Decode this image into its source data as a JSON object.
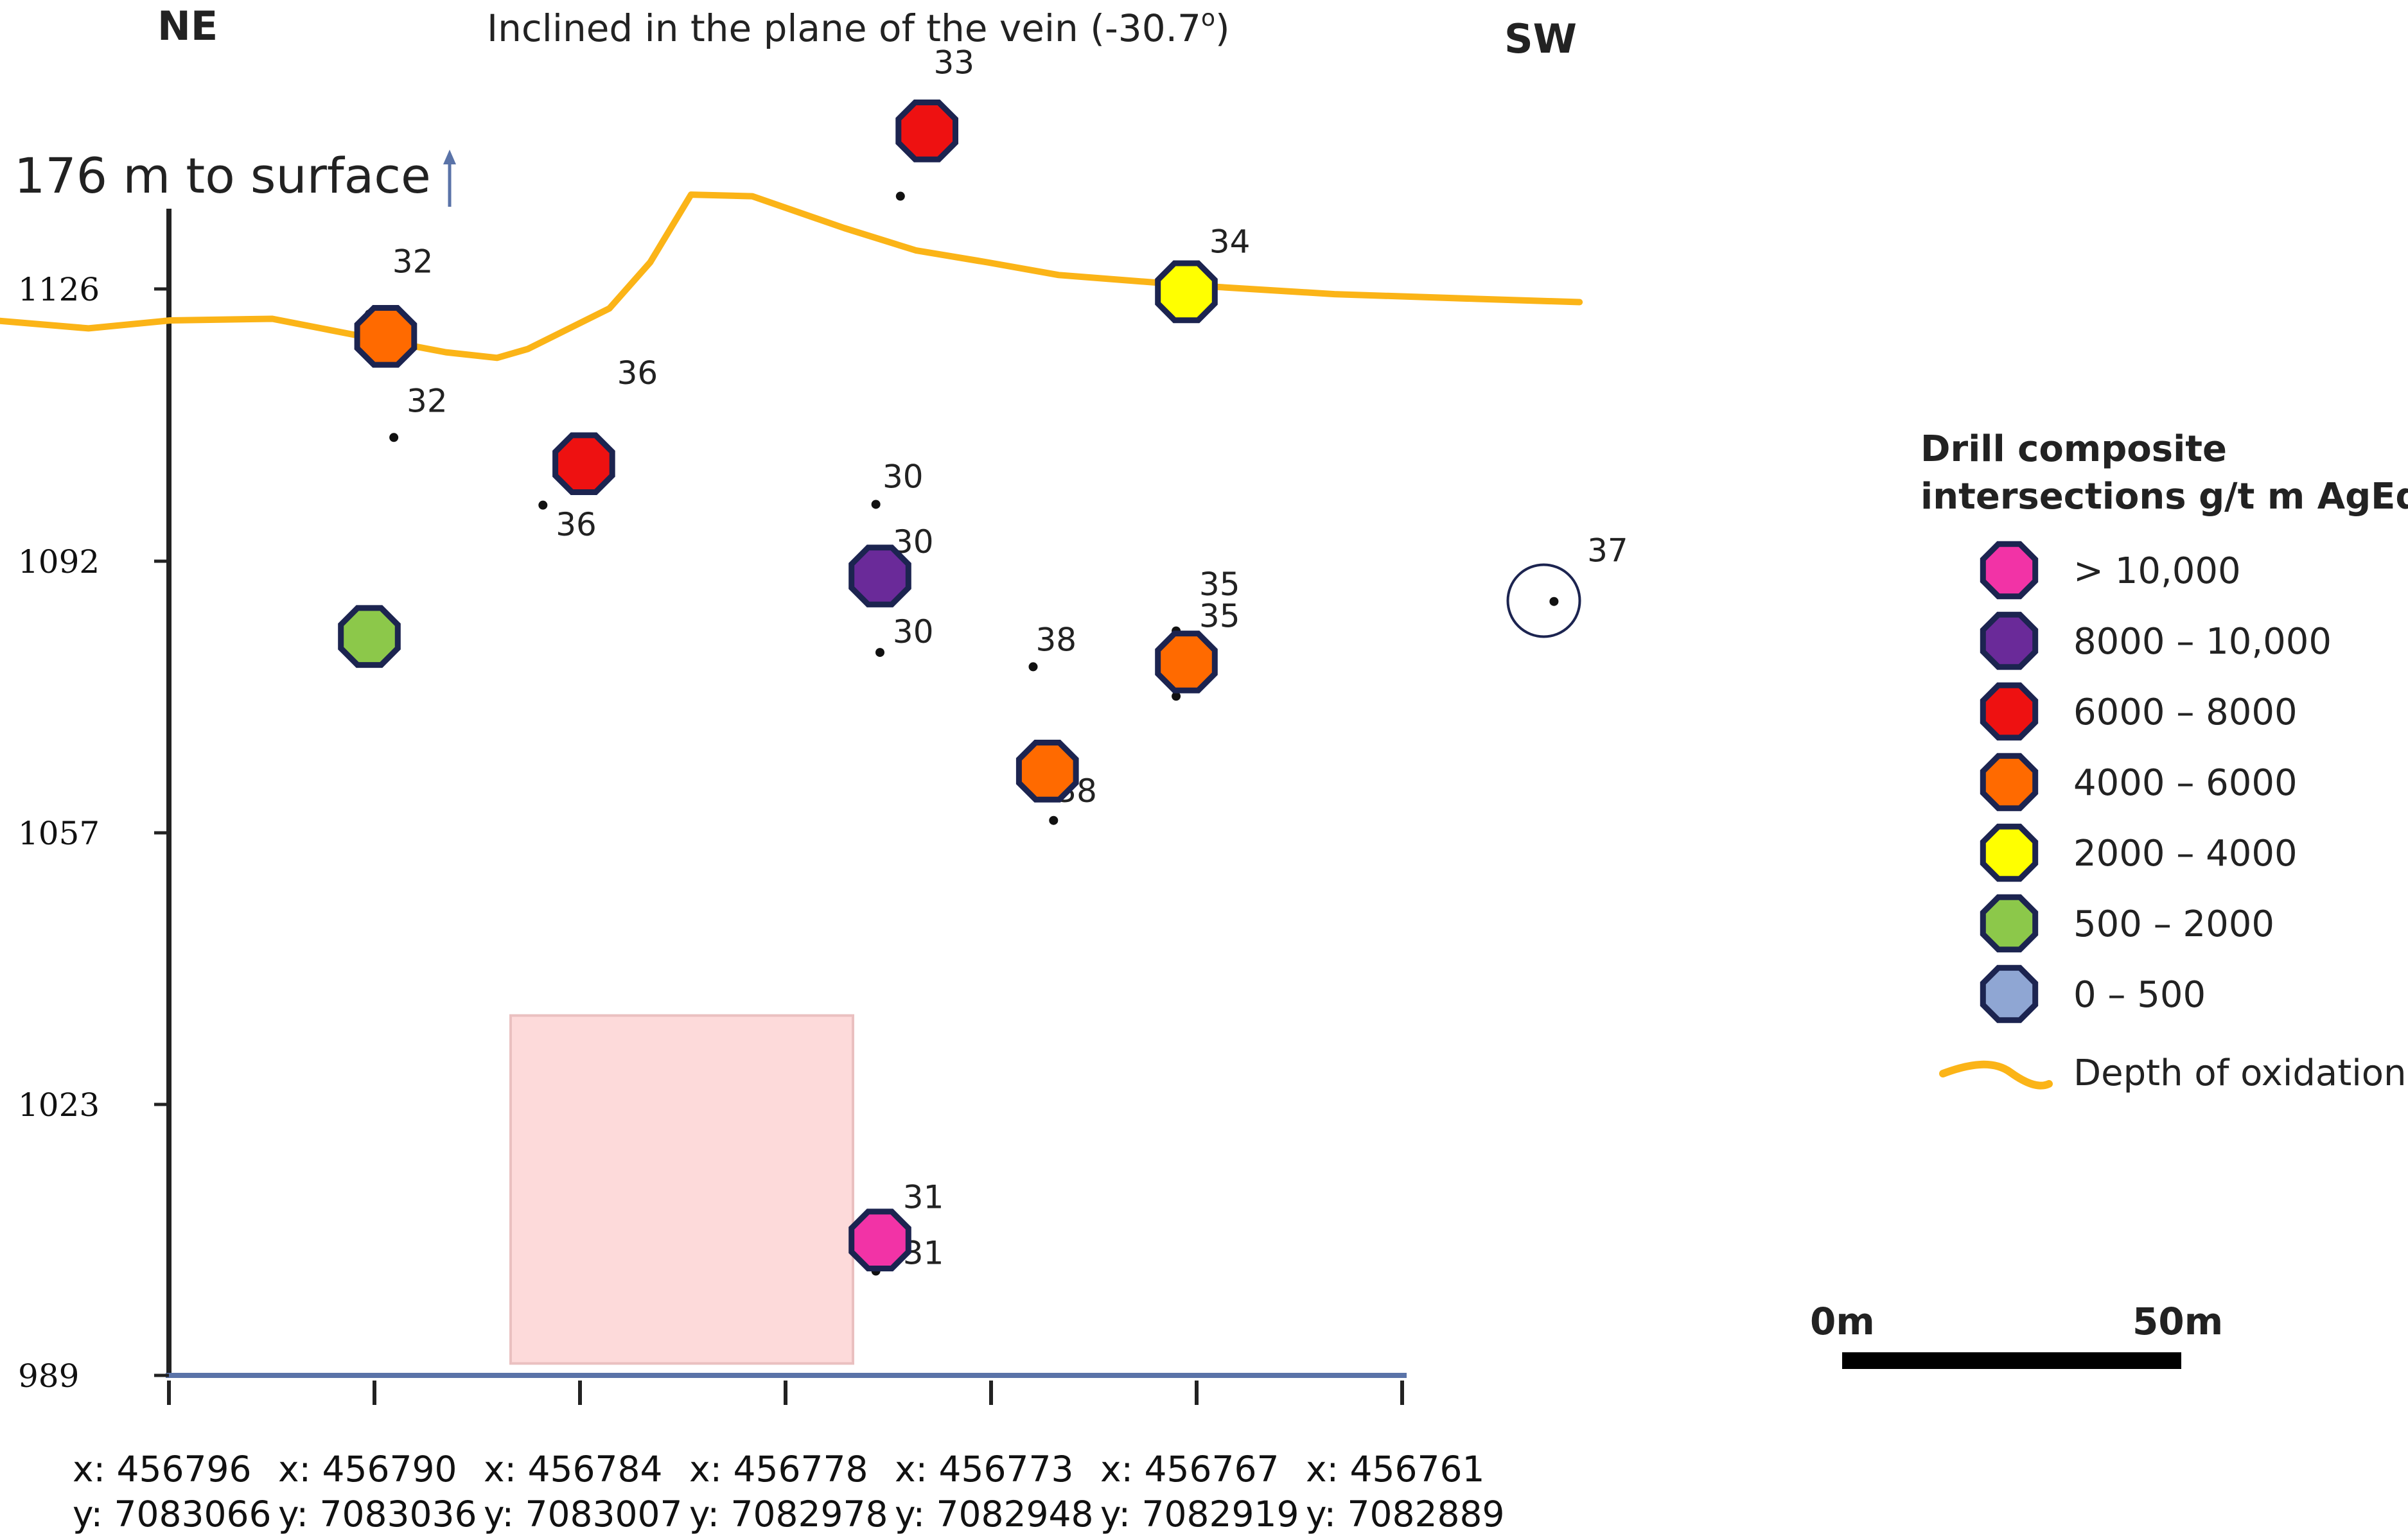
{
  "header": {
    "left_direction": "NE",
    "title": "Inclined in the plane of the vein (-30.7",
    "title_sup": "o",
    "title_close": ")",
    "right_direction": "SW"
  },
  "surface_note": "176 m to surface",
  "colors": {
    "gt_10000": "#f233a6",
    "r_8000_10000": "#6a2a99",
    "r_6000_8000": "#ee1111",
    "r_4000_6000": "#ff6a00",
    "r_2000_4000": "#ffff00",
    "r_500_2000": "#8cc84a",
    "r_0_500": "#8fa6d3",
    "oxidation": "#fbb417",
    "outline": "#1c2450",
    "highlight_box": "#fddada",
    "axis_bottom": "#5a73a8"
  },
  "chart_data": {
    "type": "scatter",
    "ylim": [
      989,
      1160
    ],
    "y_ticks": [
      "1126",
      "1092",
      "1057",
      "1023",
      "989"
    ],
    "x_ticks": [
      {
        "x": "x: 456796",
        "y": "y: 7083066"
      },
      {
        "x": "x: 456790",
        "y": "y: 7083036"
      },
      {
        "x": "x: 456784",
        "y": "y: 7083007"
      },
      {
        "x": "x: 456778",
        "y": "y: 7082978"
      },
      {
        "x": "x: 456773",
        "y": "y: 7082948"
      },
      {
        "x": "x: 456767",
        "y": "y: 7082919"
      },
      {
        "x": "x: 456761",
        "y": "y: 7082889"
      }
    ],
    "intersections": [
      {
        "hole": "32",
        "category": "r_4000_6000",
        "x": 0.08,
        "y": 1119.5
      },
      {
        "hole": "36",
        "category": "r_6000_8000",
        "x": 1.05,
        "y": 1103.5
      },
      {
        "hole": "33",
        "category": "r_6000_8000",
        "x": 2.73,
        "y": 1145.3
      },
      {
        "hole": "34",
        "category": "r_2000_4000",
        "x": 4.0,
        "y": 1125.1
      },
      {
        "hole": "30",
        "category": "r_8000_10000",
        "x": 2.5,
        "y": 1089.4
      },
      {
        "hole": "",
        "category": "r_500_2000",
        "x": 0.0,
        "y": 1081.8
      },
      {
        "hole": "38",
        "category": "r_4000_6000",
        "x": 3.32,
        "y": 1064.9
      },
      {
        "hole": "35",
        "category": "r_4000_6000",
        "x": 4.0,
        "y": 1078.6
      },
      {
        "hole": "31",
        "category": "r_gt_10000",
        "x": 2.5,
        "y": 1006.0
      }
    ],
    "hole_labels": [
      {
        "text": "32",
        "x": 0.1,
        "y": 1127.5
      },
      {
        "text": "32",
        "x": 0.17,
        "y": 1110.0
      },
      {
        "text": "36",
        "x": 1.2,
        "y": 1113.5
      },
      {
        "text": "36",
        "x": 0.9,
        "y": 1094.5
      },
      {
        "text": "33",
        "x": 2.75,
        "y": 1152.5
      },
      {
        "text": "34",
        "x": 4.1,
        "y": 1130.0
      },
      {
        "text": "30",
        "x": 2.5,
        "y": 1100.5
      },
      {
        "text": "30",
        "x": 2.55,
        "y": 1092.3
      },
      {
        "text": "30",
        "x": 2.55,
        "y": 1081.0
      },
      {
        "text": "38",
        "x": 3.25,
        "y": 1080.0
      },
      {
        "text": "38",
        "x": 3.35,
        "y": 1061.0
      },
      {
        "text": "35",
        "x": 4.05,
        "y": 1087.0
      },
      {
        "text": "35",
        "x": 4.05,
        "y": 1083.0
      },
      {
        "text": "37",
        "x": 5.95,
        "y": 1091.2
      },
      {
        "text": "31",
        "x": 2.6,
        "y": 1010.0
      },
      {
        "text": "31",
        "x": 2.6,
        "y": 1003.0
      }
    ],
    "hole_dots": [
      {
        "x": 0.0,
        "y": 1122.3
      },
      {
        "x": 0.12,
        "y": 1106.8
      },
      {
        "x": 0.85,
        "y": 1098.3
      },
      {
        "x": 2.48,
        "y": 1098.4
      },
      {
        "x": 2.5,
        "y": 1079.8
      },
      {
        "x": 3.25,
        "y": 1078.0
      },
      {
        "x": 3.35,
        "y": 1058.7
      },
      {
        "x": 3.95,
        "y": 1082.5
      },
      {
        "x": 3.95,
        "y": 1074.3
      },
      {
        "x": 5.8,
        "y": 1086.2
      },
      {
        "x": 2.48,
        "y": 1002.1
      },
      {
        "x": 2.6,
        "y": 1137.1
      }
    ],
    "open_circle_hole": {
      "x": 5.75,
      "y": 1086.3
    },
    "oxidation_line": [
      [
        -1.0,
        1121.8
      ],
      [
        -0.4,
        1120.5
      ],
      [
        0.0,
        1121.5
      ],
      [
        0.5,
        1121.7
      ],
      [
        1.0,
        1119.2
      ],
      [
        1.35,
        1117.5
      ],
      [
        1.6,
        1116.8
      ],
      [
        1.75,
        1117.9
      ],
      [
        2.15,
        1123.0
      ],
      [
        2.35,
        1128.8
      ],
      [
        2.55,
        1137.3
      ],
      [
        2.85,
        1137.1
      ],
      [
        3.3,
        1133.1
      ],
      [
        3.65,
        1130.3
      ],
      [
        4.0,
        1128.8
      ],
      [
        4.35,
        1127.2
      ],
      [
        5.0,
        1125.9
      ],
      [
        5.7,
        1124.8
      ],
      [
        6.4,
        1124.2
      ],
      [
        6.9,
        1123.8
      ]
    ],
    "highlight_region": {
      "x0": 1.4,
      "x1": 3.1,
      "y0": 990.5,
      "y1": 1034.2
    }
  },
  "legend": {
    "title_line1": "Drill composite",
    "title_line2": "intersections g/t m AgEq",
    "items": [
      {
        "label": "> 10,000",
        "color_key": "gt_10000"
      },
      {
        "label": "8000 – 10,000",
        "color_key": "r_8000_10000"
      },
      {
        "label": "6000 – 8000",
        "color_key": "r_6000_8000"
      },
      {
        "label": "4000 – 6000",
        "color_key": "r_4000_6000"
      },
      {
        "label": "2000 – 4000",
        "color_key": "r_2000_4000"
      },
      {
        "label": "500 – 2000",
        "color_key": "r_500_2000"
      },
      {
        "label": "0 – 500",
        "color_key": "r_0_500"
      }
    ],
    "oxidation_label": "Depth of oxidation"
  },
  "scale_bar": {
    "start_label": "0m",
    "end_label": "50m"
  }
}
